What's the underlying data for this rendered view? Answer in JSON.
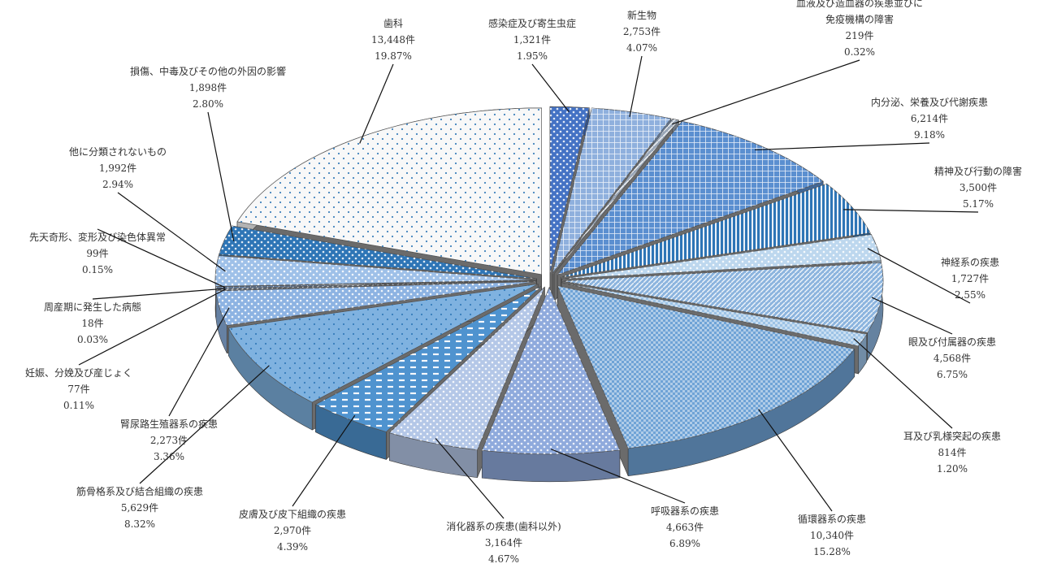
{
  "chart_data": {
    "type": "pie",
    "title": "",
    "unit": "件",
    "legend": "none",
    "slices": [
      {
        "name": "感染症及び寄生虫症",
        "count": 1321,
        "count_label": "1,321件",
        "percent": 1.95,
        "percent_label": "1.95%",
        "color": "#4472c4"
      },
      {
        "name": "新生物",
        "count": 2753,
        "count_label": "2,753件",
        "percent": 4.07,
        "percent_label": "4.07%",
        "color": "#8fb0dd"
      },
      {
        "name": "血液及び造血器の疾患並びに免疫機構の障害",
        "count": 219,
        "count_label": "219件",
        "percent": 0.32,
        "percent_label": "0.32%",
        "color": "#9aa7b8"
      },
      {
        "name": "内分泌、栄養及び代謝疾患",
        "count": 6214,
        "count_label": "6,214件",
        "percent": 9.18,
        "percent_label": "9.18%",
        "color": "#5b8fd0"
      },
      {
        "name": "精神及び行動の障害",
        "count": 3500,
        "count_label": "3,500件",
        "percent": 5.17,
        "percent_label": "5.17%",
        "color": "#2e75b6"
      },
      {
        "name": "神経系の疾患",
        "count": 1727,
        "count_label": "1,727件",
        "percent": 2.55,
        "percent_label": "2.55%",
        "color": "#bdd7ee"
      },
      {
        "name": "眼及び付属器の疾患",
        "count": 4568,
        "count_label": "4,568件",
        "percent": 6.75,
        "percent_label": "6.75%",
        "color": "#8cb4de"
      },
      {
        "name": "耳及び乳様突起の疾患",
        "count": 814,
        "count_label": "814件",
        "percent": 1.2,
        "percent_label": "1.20%",
        "color": "#9dc3e6"
      },
      {
        "name": "循環器系の疾患",
        "count": 10340,
        "count_label": "10,340件",
        "percent": 15.28,
        "percent_label": "15.28%",
        "color": "#6fa3d6"
      },
      {
        "name": "呼吸器系の疾患",
        "count": 4663,
        "count_label": "4,663件",
        "percent": 6.89,
        "percent_label": "6.89%",
        "color": "#8faadc"
      },
      {
        "name": "消化器系の疾患(歯科以外)",
        "count": 3164,
        "count_label": "3,164件",
        "percent": 4.67,
        "percent_label": "4.67%",
        "color": "#b4c7e7"
      },
      {
        "name": "皮膚及び皮下組織の疾患",
        "count": 2970,
        "count_label": "2,970件",
        "percent": 4.39,
        "percent_label": "4.39%",
        "color": "#4f93cf"
      },
      {
        "name": "筋骨格系及び結合組織の疾患",
        "count": 5629,
        "count_label": "5,629件",
        "percent": 8.32,
        "percent_label": "8.32%",
        "color": "#7fb2e0"
      },
      {
        "name": "腎尿路生殖器系の疾患",
        "count": 2273,
        "count_label": "2,273件",
        "percent": 3.36,
        "percent_label": "3.36%",
        "color": "#8db3e2"
      },
      {
        "name": "妊娠、分娩及び産じょく",
        "count": 77,
        "count_label": "77件",
        "percent": 0.11,
        "percent_label": "0.11%",
        "color": "#6e8fb8"
      },
      {
        "name": "周産期に発生した病態",
        "count": 18,
        "count_label": "18件",
        "percent": 0.03,
        "percent_label": "0.03%",
        "color": "#5d7fa8"
      },
      {
        "name": "先天奇形、変形及び染色体異常",
        "count": 99,
        "count_label": "99件",
        "percent": 0.15,
        "percent_label": "0.15%",
        "color": "#6a8fc0"
      },
      {
        "name": "他に分類されないもの",
        "count": 1992,
        "count_label": "1,992件",
        "percent": 2.94,
        "percent_label": "2.94%",
        "color": "#9ec0e8"
      },
      {
        "name": "損傷、中毒及びその他の外因の影響",
        "count": 1898,
        "count_label": "1,898件",
        "percent": 2.8,
        "percent_label": "2.80%",
        "color": "#2e75b6"
      },
      {
        "name": "歯科",
        "count": 13448,
        "count_label": "13,448件",
        "percent": 19.87,
        "percent_label": "19.87%",
        "color": "#f8f8f8"
      }
    ]
  }
}
